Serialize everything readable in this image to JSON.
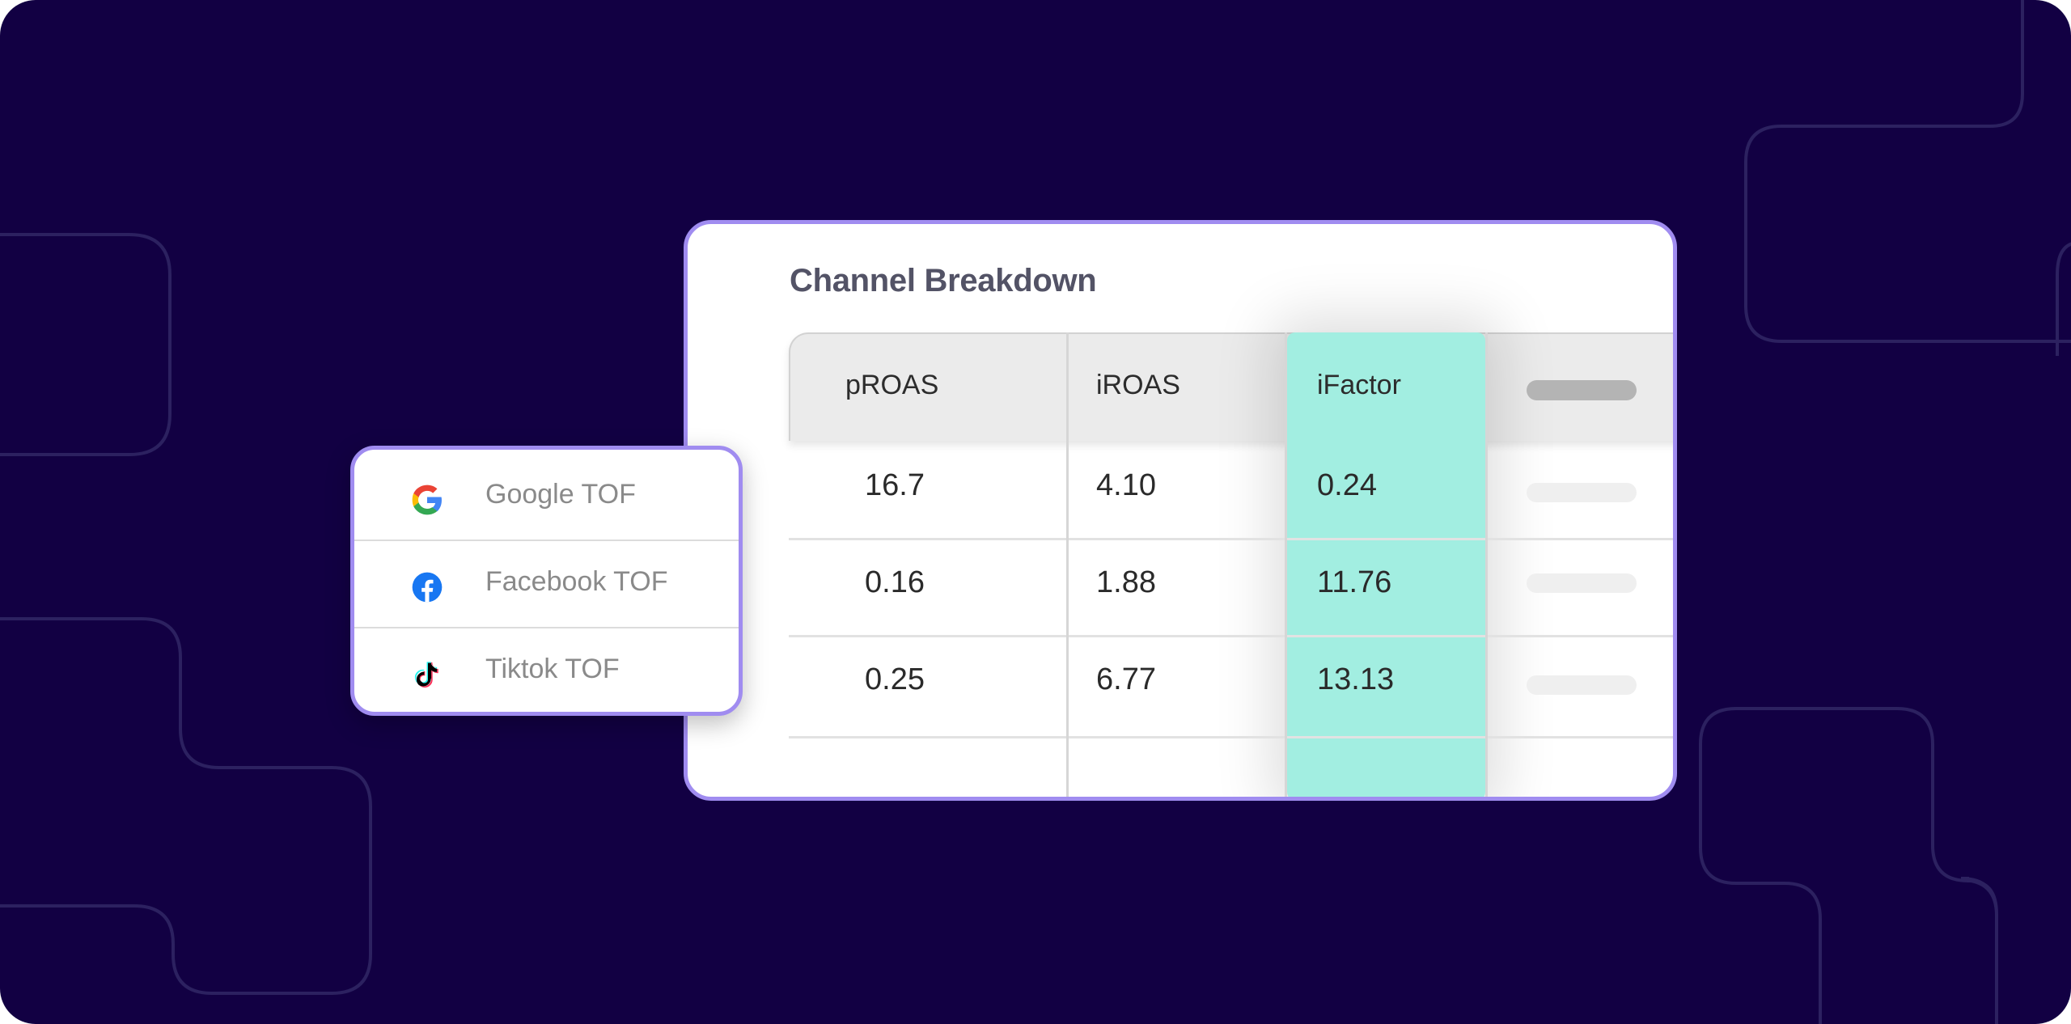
{
  "colors": {
    "background": "#120043",
    "card_border": "#a08cf0",
    "highlight": "#a2eee1",
    "title_text": "#535366"
  },
  "card": {
    "title": "Channel Breakdown",
    "columns": [
      "pROAS",
      "iROAS",
      "iFactor"
    ],
    "rows": [
      {
        "proas": "16.7",
        "iroas": "4.10",
        "ifactor": "0.24"
      },
      {
        "proas": "0.16",
        "iroas": "1.88",
        "ifactor": "11.76"
      },
      {
        "proas": "0.25",
        "iroas": "6.77",
        "ifactor": "13.13"
      }
    ]
  },
  "channels": [
    {
      "label": "Google TOF",
      "icon": "google-icon"
    },
    {
      "label": "Facebook TOF",
      "icon": "facebook-icon"
    },
    {
      "label": "Tiktok TOF",
      "icon": "tiktok-icon"
    }
  ]
}
